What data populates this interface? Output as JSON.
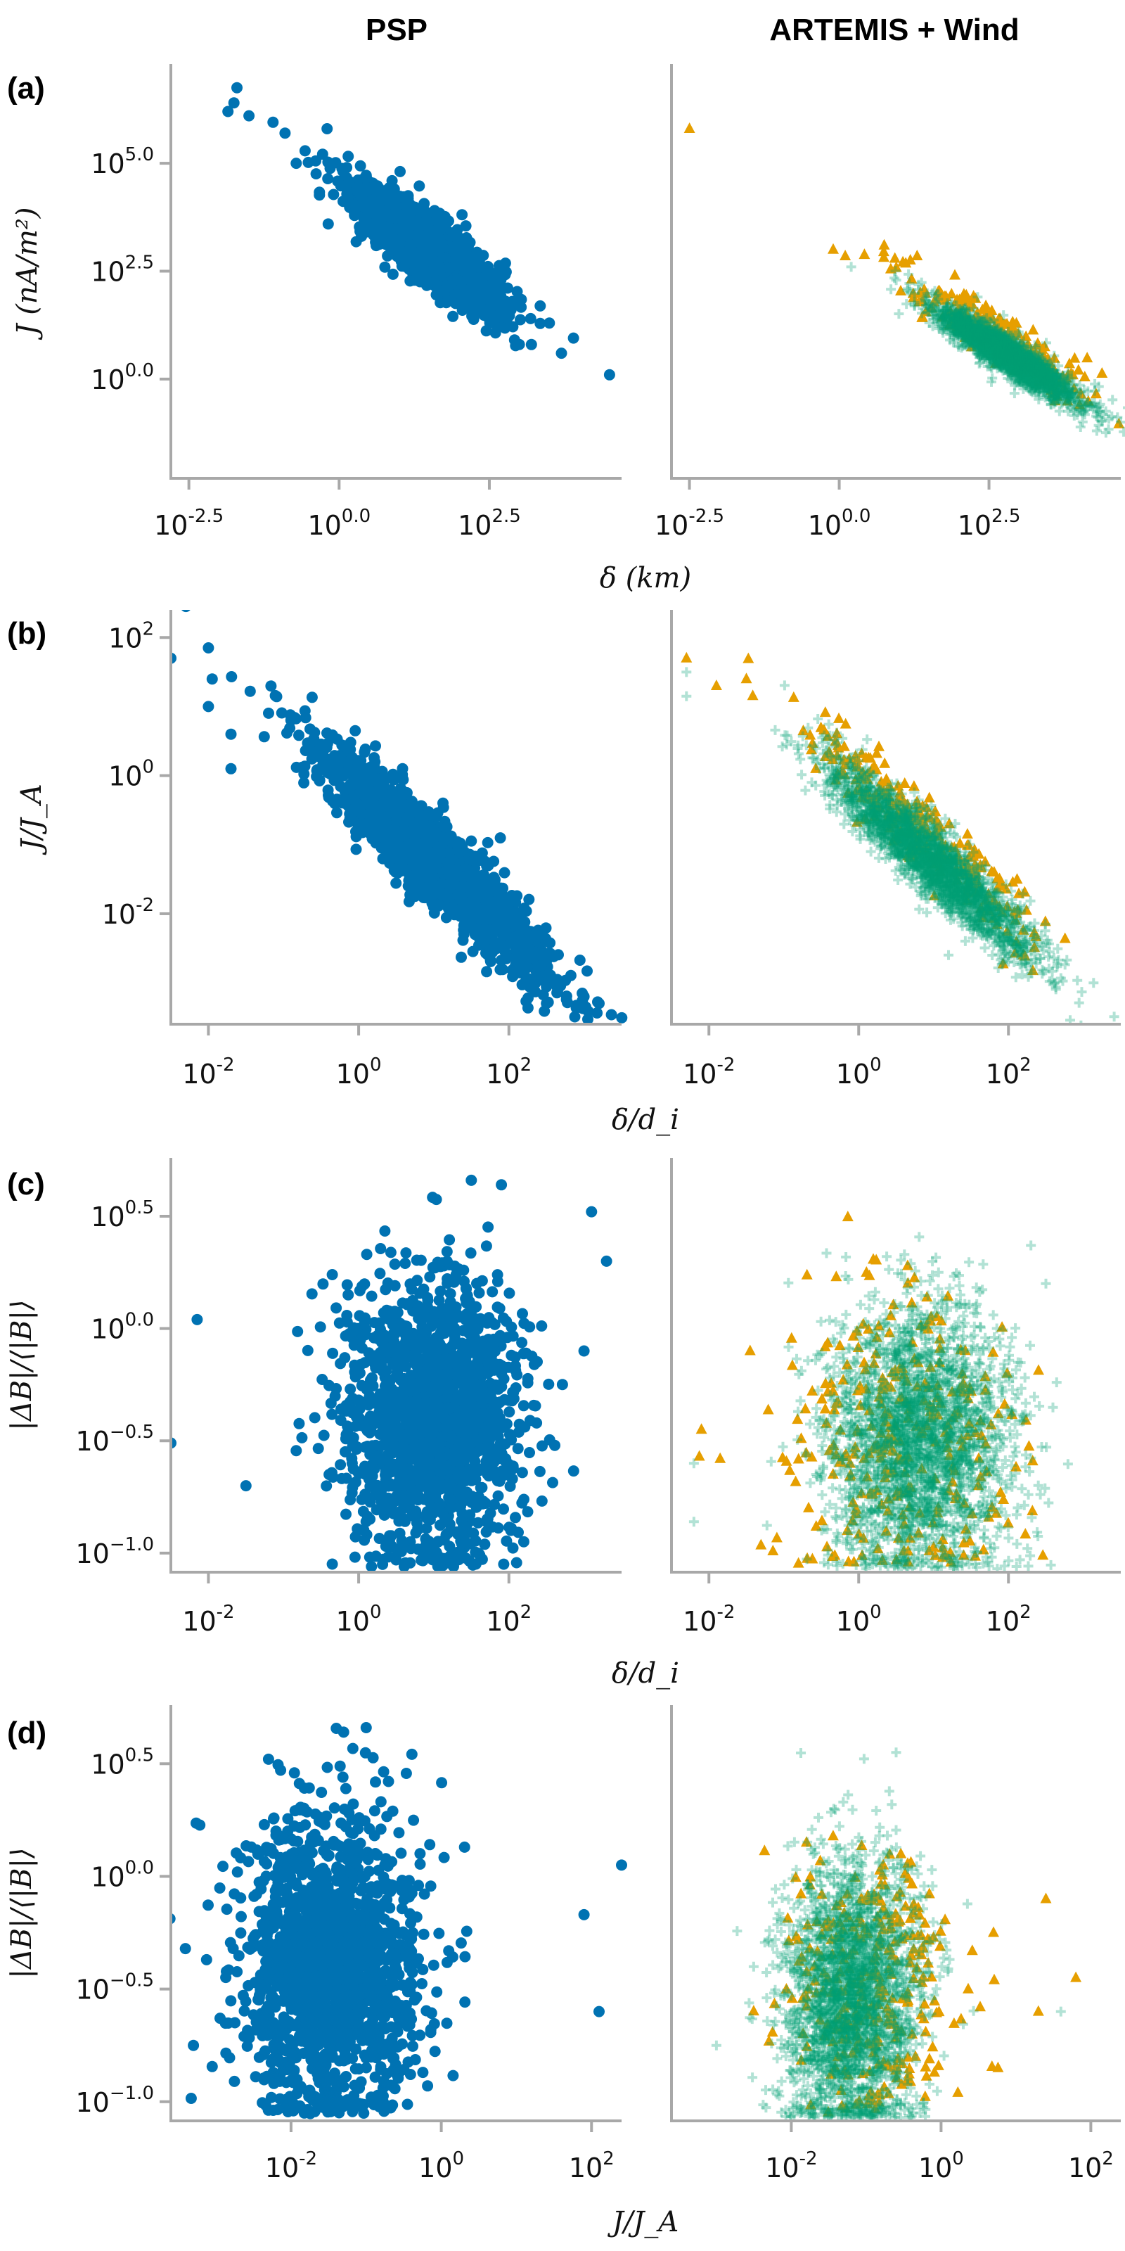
{
  "titles": {
    "left": "PSP",
    "right": "ARTEMIS + Wind"
  },
  "colors": {
    "PSP": "#0072B2",
    "ARTEMIS": "#E69F00",
    "Wind": "#009E73",
    "axis": "#a8a8a8"
  },
  "chart_data": [
    {
      "panel": "(a)",
      "type": "scatter",
      "xscale": "log",
      "yscale": "log",
      "xlabel": "δ (km)",
      "ylabel": "J (nA/m²)",
      "xlim_log10": [
        -2.8,
        4.7
      ],
      "ylim_log10": [
        -2.3,
        7.3
      ],
      "xticks": [
        {
          "log10": -2.5,
          "exp": "-2.5"
        },
        {
          "log10": 0,
          "exp": "0.0"
        },
        {
          "log10": 2.5,
          "exp": "2.5"
        }
      ],
      "yticks": [
        {
          "log10": 0,
          "exp": "0.0"
        },
        {
          "log10": 2.5,
          "exp": "2.5"
        },
        {
          "log10": 5,
          "exp": "5.0"
        }
      ],
      "series": [
        {
          "name": "PSP",
          "subplot": "left",
          "marker": "circle",
          "n": 1600,
          "cloud": {
            "x_mean": 1.4,
            "x_sd": 0.65,
            "intercept": 4.5,
            "slope": -1.0,
            "y_sd": 0.38
          },
          "outliers": [
            [
              -1.7,
              6.75
            ],
            [
              -1.75,
              6.4
            ],
            [
              -1.85,
              6.2
            ],
            [
              -1.5,
              6.1
            ],
            [
              -1.1,
              5.95
            ],
            [
              -0.9,
              5.7
            ],
            [
              -0.2,
              5.8
            ],
            [
              4.5,
              0.1
            ],
            [
              3.7,
              0.6
            ],
            [
              3.9,
              0.95
            ],
            [
              3.2,
              0.8
            ]
          ]
        },
        {
          "name": "ARTEMIS",
          "subplot": "right",
          "marker": "triangle",
          "n": 260,
          "cloud": {
            "x_mean": 2.6,
            "x_sd": 0.8,
            "intercept": 3.25,
            "slope": -0.86,
            "y_sd": 0.28
          },
          "outliers": [
            [
              -2.5,
              5.8
            ],
            [
              -0.1,
              3.0
            ],
            [
              0.1,
              2.85
            ],
            [
              0.75,
              3.1
            ],
            [
              1.3,
              2.85
            ]
          ]
        },
        {
          "name": "Wind",
          "subplot": "right",
          "marker": "plus",
          "n": 2200,
          "cloud": {
            "x_mean": 2.8,
            "x_sd": 0.6,
            "intercept": 3.0,
            "slope": -0.87,
            "y_sd": 0.22
          },
          "outliers": [
            [
              4.3,
              -1.2
            ],
            [
              0.2,
              2.6
            ]
          ]
        }
      ]
    },
    {
      "panel": "(b)",
      "type": "scatter",
      "xscale": "log",
      "yscale": "log",
      "xlabel": "δ/d_i",
      "ylabel": "J/J_A",
      "xlim_log10": [
        -2.5,
        3.5
      ],
      "ylim_log10": [
        -3.6,
        2.4
      ],
      "xticks": [
        {
          "log10": -2,
          "exp": "-2"
        },
        {
          "log10": 0,
          "exp": "0"
        },
        {
          "log10": 2,
          "exp": "2"
        }
      ],
      "yticks": [
        {
          "log10": -2,
          "exp": "-2"
        },
        {
          "log10": 0,
          "exp": "0"
        },
        {
          "log10": 2,
          "exp": "2"
        }
      ],
      "series": [
        {
          "name": "PSP",
          "subplot": "left",
          "marker": "circle",
          "n": 1600,
          "cloud": {
            "x_mean": 1.0,
            "x_sd": 0.8,
            "intercept": -0.25,
            "slope": -1.0,
            "y_sd": 0.33
          },
          "outliers": [
            [
              -2.3,
              2.45
            ],
            [
              -2.5,
              1.7
            ],
            [
              -2.0,
              1.85
            ],
            [
              -1.95,
              1.4
            ],
            [
              -2.0,
              1.0
            ],
            [
              -1.7,
              0.6
            ],
            [
              -1.7,
              0.1
            ],
            [
              3.2,
              -3.3
            ],
            [
              3.0,
              -3.2
            ],
            [
              2.5,
              -3.3
            ],
            [
              1.0,
              -1.6
            ]
          ]
        },
        {
          "name": "ARTEMIS",
          "subplot": "right",
          "marker": "triangle",
          "n": 260,
          "cloud": {
            "x_mean": 0.9,
            "x_sd": 0.8,
            "intercept": 0.05,
            "slope": -0.98,
            "y_sd": 0.28
          },
          "outliers": [
            [
              -2.3,
              1.7
            ],
            [
              -1.9,
              1.3
            ],
            [
              -1.5,
              1.4
            ],
            [
              2.2,
              -2.6
            ]
          ]
        },
        {
          "name": "Wind",
          "subplot": "right",
          "marker": "plus",
          "n": 2200,
          "cloud": {
            "x_mean": 1.0,
            "x_sd": 0.7,
            "intercept": -0.3,
            "slope": -0.95,
            "y_sd": 0.27
          },
          "outliers": [
            [
              -2.3,
              1.5
            ],
            [
              -2.3,
              1.15
            ],
            [
              1.2,
              -2.6
            ]
          ]
        }
      ]
    },
    {
      "panel": "(c)",
      "type": "scatter",
      "xscale": "log",
      "yscale": "log",
      "xlabel": "δ/d_i",
      "ylabel": "|ΔB|/⟨|B|⟩",
      "xlim_log10": [
        -2.5,
        3.5
      ],
      "ylim_log10": [
        -1.085,
        0.76
      ],
      "xticks": [
        {
          "log10": -2,
          "exp": "-2"
        },
        {
          "log10": 0,
          "exp": "0"
        },
        {
          "log10": 2,
          "exp": "2"
        }
      ],
      "yticks": [
        {
          "log10": -1,
          "exp": "−1.0"
        },
        {
          "log10": -0.5,
          "exp": "−0.5"
        },
        {
          "log10": 0,
          "exp": "0.0"
        },
        {
          "log10": 0.5,
          "exp": "0.5"
        }
      ],
      "series": [
        {
          "name": "PSP",
          "subplot": "left",
          "marker": "circle",
          "n": 1600,
          "cloud": {
            "x_mean": 1.0,
            "x_sd": 0.6,
            "y_mean": -0.4,
            "y_sd": 0.32,
            "y_floor": -1.06
          },
          "outliers": [
            [
              -2.15,
              0.04
            ],
            [
              -2.5,
              -0.51
            ],
            [
              -1.5,
              -0.7
            ],
            [
              1.5,
              0.66
            ],
            [
              1.9,
              0.64
            ],
            [
              3.1,
              0.52
            ],
            [
              3.3,
              0.3
            ],
            [
              3.0,
              -0.1
            ]
          ]
        },
        {
          "name": "ARTEMIS",
          "subplot": "right",
          "marker": "triangle",
          "n": 300,
          "cloud": {
            "x_mean": 0.6,
            "x_sd": 0.8,
            "y_mean": -0.45,
            "y_sd": 0.32,
            "y_floor": -1.05
          },
          "outliers": [
            [
              -2.1,
              -0.45
            ],
            [
              -1.85,
              -0.58
            ],
            [
              -1.45,
              -0.1
            ],
            [
              -0.3,
              0.23
            ]
          ]
        },
        {
          "name": "Wind",
          "subplot": "right",
          "marker": "plus",
          "n": 2400,
          "cloud": {
            "x_mean": 0.8,
            "x_sd": 0.6,
            "y_mean": -0.5,
            "y_sd": 0.3,
            "y_floor": -1.07
          },
          "outliers": [
            [
              -2.2,
              -0.6
            ],
            [
              -2.2,
              -0.86
            ],
            [
              2.3,
              0.37
            ],
            [
              2.5,
              0.2
            ]
          ]
        }
      ]
    },
    {
      "panel": "(d)",
      "type": "scatter",
      "xscale": "log",
      "yscale": "log",
      "xlabel": "J/J_A",
      "ylabel": "|ΔB|/⟨|B|⟩",
      "xlim_log10": [
        -3.6,
        2.4
      ],
      "ylim_log10": [
        -1.085,
        0.76
      ],
      "xticks": [
        {
          "log10": -2,
          "exp": "-2"
        },
        {
          "log10": 0,
          "exp": "0"
        },
        {
          "log10": 2,
          "exp": "2"
        }
      ],
      "yticks": [
        {
          "log10": -1,
          "exp": "−1.0"
        },
        {
          "log10": -0.5,
          "exp": "−0.5"
        },
        {
          "log10": 0,
          "exp": "0.0"
        },
        {
          "log10": 0.5,
          "exp": "0.5"
        }
      ],
      "series": [
        {
          "name": "PSP",
          "subplot": "left",
          "marker": "circle",
          "n": 1600,
          "cloud": {
            "x_mean": -1.5,
            "x_sd": 0.6,
            "y_mean": -0.4,
            "y_sd": 0.32,
            "y_floor": -1.06
          },
          "outliers": [
            [
              -2.3,
              0.52
            ],
            [
              -1.3,
              0.64
            ],
            [
              -1.0,
              0.66
            ],
            [
              2.4,
              0.05
            ],
            [
              2.1,
              -0.6
            ],
            [
              1.9,
              -0.17
            ],
            [
              -3.3,
              -0.75
            ]
          ]
        },
        {
          "name": "ARTEMIS",
          "subplot": "right",
          "marker": "triangle",
          "n": 300,
          "cloud": {
            "x_mean": -0.9,
            "x_sd": 0.55,
            "y_mean": -0.5,
            "y_sd": 0.3,
            "y_floor": -1.05
          },
          "outliers": [
            [
              1.4,
              -0.1
            ],
            [
              1.8,
              -0.45
            ],
            [
              1.3,
              -0.6
            ],
            [
              0.7,
              -0.25
            ]
          ]
        },
        {
          "name": "Wind",
          "subplot": "right",
          "marker": "plus",
          "n": 2400,
          "cloud": {
            "x_mean": -1.2,
            "x_sd": 0.45,
            "y_mean": -0.55,
            "y_sd": 0.3,
            "y_floor": -1.07
          },
          "outliers": [
            [
              -3.0,
              -0.75
            ],
            [
              1.6,
              -0.6
            ],
            [
              -0.6,
              0.55
            ]
          ]
        }
      ]
    }
  ]
}
